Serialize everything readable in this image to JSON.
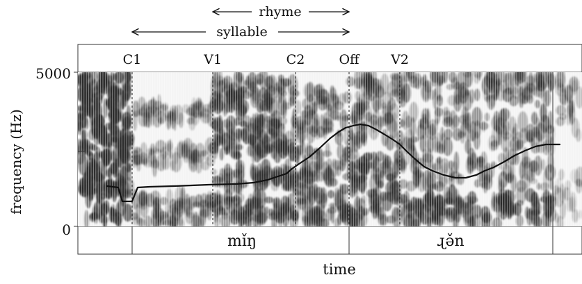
{
  "spans": {
    "rhyme": "rhyme",
    "syllable": "syllable"
  },
  "landmarks": [
    "C1",
    "V1",
    "C2",
    "Off",
    "V2"
  ],
  "axes": {
    "ylabel": "frequency (Hz)",
    "xlabel": "time",
    "y_top": "5000",
    "y_bottom": "0"
  },
  "segments": [
    "mǐŋ",
    "ɻə̌n"
  ],
  "colors": {
    "ink": "#111111",
    "spectrogram_dark": "#2a2a2a",
    "spectrogram_light": "#f2f2f2"
  }
}
